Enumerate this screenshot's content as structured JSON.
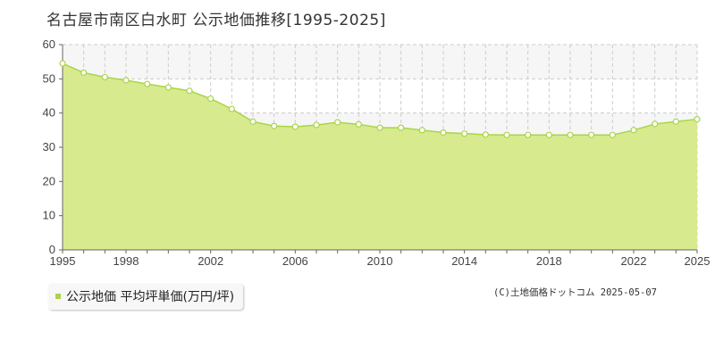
{
  "title": "名古屋市南区白水町 公示地価推移[1995-2025]",
  "legend_label": "公示地価 平均坪単価(万円/坪)",
  "copyright": "(C)土地価格ドットコム 2025-05-07",
  "colors": {
    "fill": "#d8ea8e",
    "line": "#a8d548",
    "point_fill": "#ffffff",
    "band": "#f6f6f6",
    "grid": "#cccccc"
  },
  "chart_data": {
    "type": "area",
    "title": "名古屋市南区白水町 公示地価推移[1995-2025]",
    "xlabel": "",
    "ylabel": "",
    "xlim": [
      1995,
      2025
    ],
    "ylim": [
      0,
      60
    ],
    "y_ticks": [
      0,
      10,
      20,
      30,
      40,
      50,
      60
    ],
    "x_ticks": [
      1995,
      1998,
      2002,
      2006,
      2010,
      2014,
      2018,
      2022,
      2025
    ],
    "grid": true,
    "legend": "bottom-left",
    "series": [
      {
        "name": "公示地価 平均坪単価(万円/坪)",
        "x": [
          1995,
          1996,
          1997,
          1998,
          1999,
          2000,
          2001,
          2002,
          2003,
          2004,
          2005,
          2006,
          2007,
          2008,
          2009,
          2010,
          2011,
          2012,
          2013,
          2014,
          2015,
          2016,
          2017,
          2018,
          2019,
          2020,
          2021,
          2022,
          2023,
          2024,
          2025
        ],
        "values": [
          54.5,
          51.8,
          50.5,
          49.6,
          48.5,
          47.5,
          46.5,
          44.2,
          41.2,
          37.5,
          36.2,
          36.0,
          36.5,
          37.3,
          36.7,
          35.7,
          35.7,
          35.0,
          34.3,
          34.0,
          33.7,
          33.6,
          33.6,
          33.6,
          33.6,
          33.6,
          33.6,
          35.0,
          36.8,
          37.5,
          38.2
        ]
      }
    ]
  }
}
